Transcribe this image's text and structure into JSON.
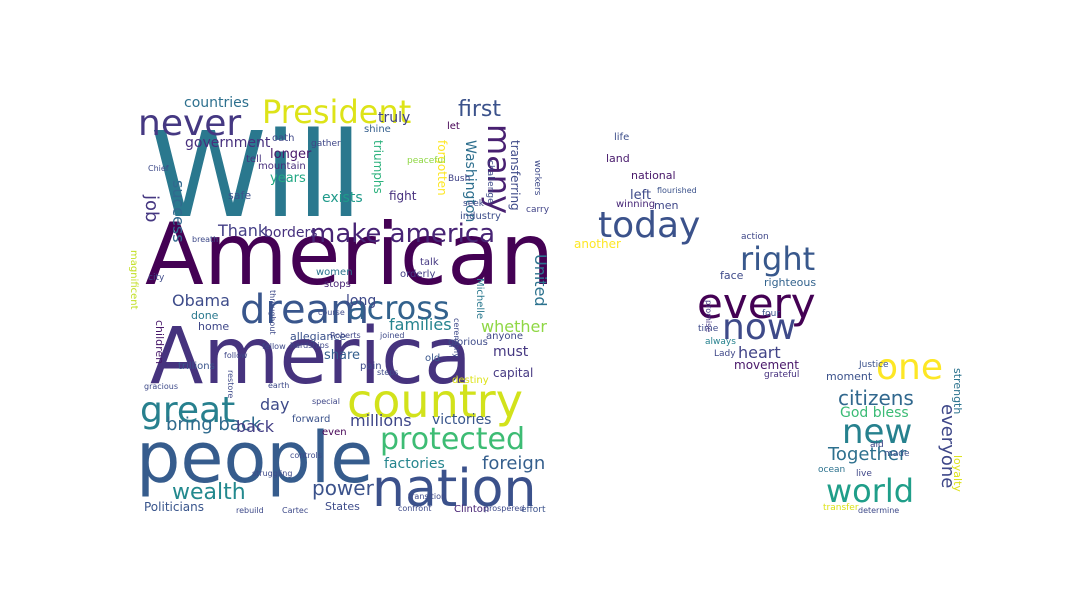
{
  "chart_data": {
    "type": "wordcloud",
    "title": "",
    "words": [
      {
        "text": "Will",
        "color": "#2a788e"
      },
      {
        "text": "American",
        "color": "#440154"
      },
      {
        "text": "America",
        "color": "#46337e"
      },
      {
        "text": "people",
        "color": "#365c8d"
      },
      {
        "text": "nation",
        "color": "#3b518b"
      },
      {
        "text": "country",
        "color": "#d2e21b"
      },
      {
        "text": "President",
        "color": "#dde318"
      },
      {
        "text": "dream",
        "color": "#39568c"
      },
      {
        "text": "great",
        "color": "#27808e"
      },
      {
        "text": "never",
        "color": "#453882"
      },
      {
        "text": "protected",
        "color": "#3dbc74"
      },
      {
        "text": "make america",
        "color": "#482475"
      },
      {
        "text": "across",
        "color": "#33628d"
      },
      {
        "text": "many",
        "color": "#482071"
      },
      {
        "text": "every",
        "color": "#440154"
      },
      {
        "text": "today",
        "color": "#3b528b"
      },
      {
        "text": "now",
        "color": "#3e4a89"
      },
      {
        "text": "right",
        "color": "#38588c"
      },
      {
        "text": "world",
        "color": "#1f9e89"
      },
      {
        "text": "new",
        "color": "#26818e"
      },
      {
        "text": "one",
        "color": "#fde725"
      },
      {
        "text": "citizens",
        "color": "#31688e"
      },
      {
        "text": "Together",
        "color": "#2d708e"
      },
      {
        "text": "everyone",
        "color": "#3f4889"
      },
      {
        "text": "God bless",
        "color": "#3bbb75"
      },
      {
        "text": "wealth",
        "color": "#23898e"
      },
      {
        "text": "power",
        "color": "#3b528b"
      },
      {
        "text": "bring back",
        "color": "#2f6b8e"
      },
      {
        "text": "foreign",
        "color": "#355f8d"
      },
      {
        "text": "factories",
        "color": "#25858e"
      },
      {
        "text": "millions",
        "color": "#3f4788"
      },
      {
        "text": "victories",
        "color": "#39568c"
      },
      {
        "text": "job",
        "color": "#453781"
      },
      {
        "text": "success",
        "color": "#31688e"
      },
      {
        "text": "first",
        "color": "#3b528b"
      },
      {
        "text": "truly",
        "color": "#414487"
      },
      {
        "text": "families",
        "color": "#25838e"
      },
      {
        "text": "whether",
        "color": "#8fd744"
      },
      {
        "text": "borders",
        "color": "#46307e"
      },
      {
        "text": "Thank",
        "color": "#433e85"
      },
      {
        "text": "Obama",
        "color": "#3e4c8a"
      },
      {
        "text": "United",
        "color": "#2c728e"
      },
      {
        "text": "capital",
        "color": "#453882"
      },
      {
        "text": "must",
        "color": "#453781"
      },
      {
        "text": "heart",
        "color": "#414487"
      },
      {
        "text": "long",
        "color": "#3e4989"
      },
      {
        "text": "share",
        "color": "#355f8d"
      },
      {
        "text": "day",
        "color": "#3e4a89"
      },
      {
        "text": "back",
        "color": "#433e85"
      },
      {
        "text": "countries",
        "color": "#2d708e"
      },
      {
        "text": "government",
        "color": "#472f7d"
      },
      {
        "text": "longer",
        "color": "#48186a"
      },
      {
        "text": "years",
        "color": "#22a884"
      },
      {
        "text": "exists",
        "color": "#1f9a8a"
      },
      {
        "text": "fight",
        "color": "#46307e"
      },
      {
        "text": "triumphs",
        "color": "#2db27d"
      },
      {
        "text": "forgotten",
        "color": "#fde725"
      },
      {
        "text": "Washington",
        "color": "#2e6f8e"
      },
      {
        "text": "transferring",
        "color": "#3e4a89"
      },
      {
        "text": "land",
        "color": "#481a6c"
      },
      {
        "text": "national",
        "color": "#48186a"
      },
      {
        "text": "left",
        "color": "#3e4a89"
      },
      {
        "text": "men",
        "color": "#3f4788"
      },
      {
        "text": "winning",
        "color": "#482878"
      },
      {
        "text": "another",
        "color": "#fde725"
      },
      {
        "text": "face",
        "color": "#3e4a89"
      },
      {
        "text": "righteous",
        "color": "#33638d"
      },
      {
        "text": "moment",
        "color": "#3b528b"
      },
      {
        "text": "movement",
        "color": "#481769"
      },
      {
        "text": "strength",
        "color": "#2c738e"
      },
      {
        "text": "loyalty",
        "color": "#dde318"
      },
      {
        "text": "Politicians",
        "color": "#39558c"
      },
      {
        "text": "States",
        "color": "#3e4c8a"
      },
      {
        "text": "Clinton",
        "color": "#482475"
      },
      {
        "text": "children",
        "color": "#48186a"
      },
      {
        "text": "trillions",
        "color": "#3a548c"
      },
      {
        "text": "done",
        "color": "#2a788e"
      },
      {
        "text": "home",
        "color": "#3f4788"
      },
      {
        "text": "allegiance",
        "color": "#3b528b"
      },
      {
        "text": "pain",
        "color": "#3e4a89"
      },
      {
        "text": "women",
        "color": "#2c738e"
      },
      {
        "text": "stops",
        "color": "#482475"
      },
      {
        "text": "safe",
        "color": "#3b528b"
      },
      {
        "text": "tell",
        "color": "#46327e"
      },
      {
        "text": "mountain",
        "color": "#472d7b"
      },
      {
        "text": "oath",
        "color": "#3f4788"
      },
      {
        "text": "shine",
        "color": "#355f8d"
      },
      {
        "text": "talk",
        "color": "#453882"
      },
      {
        "text": "orderly",
        "color": "#433d84"
      },
      {
        "text": "old",
        "color": "#39568c"
      },
      {
        "text": "glorious",
        "color": "#3e4a89"
      },
      {
        "text": "anyone",
        "color": "#3f4788"
      },
      {
        "text": "destiny",
        "color": "#dde318"
      },
      {
        "text": "forward",
        "color": "#3b528b"
      },
      {
        "text": "even",
        "color": "#440154"
      },
      {
        "text": "Michelle",
        "color": "#2a788e"
      },
      {
        "text": "carry",
        "color": "#404387"
      },
      {
        "text": "industry",
        "color": "#3d4e8a"
      },
      {
        "text": "seek",
        "color": "#3e4a89"
      },
      {
        "text": "Bush",
        "color": "#404387"
      },
      {
        "text": "let",
        "color": "#440154"
      },
      {
        "text": "life",
        "color": "#3d4e8a"
      },
      {
        "text": "action",
        "color": "#3f4788"
      },
      {
        "text": "four",
        "color": "#3b528b"
      },
      {
        "text": "always",
        "color": "#26818e"
      },
      {
        "text": "Lady",
        "color": "#3f4788"
      },
      {
        "text": "time",
        "color": "#3e4a89"
      },
      {
        "text": "grateful",
        "color": "#46307e"
      },
      {
        "text": "made",
        "color": "#3b528b"
      },
      {
        "text": "live",
        "color": "#3f4788"
      },
      {
        "text": "ocean",
        "color": "#2c728e"
      },
      {
        "text": "aid",
        "color": "#3f4788"
      },
      {
        "text": "promise",
        "color": "#453882"
      },
      {
        "text": "Justice",
        "color": "#3b528b"
      },
      {
        "text": "transfer",
        "color": "#dde318"
      },
      {
        "text": "determine",
        "color": "#3e4a89"
      },
      {
        "text": "flourished",
        "color": "#3b528b"
      },
      {
        "text": "peaceful",
        "color": "#8fd744"
      },
      {
        "text": "gather",
        "color": "#3f4788"
      },
      {
        "text": "effort",
        "color": "#3b528b"
      },
      {
        "text": "rebuild",
        "color": "#3e4a89"
      },
      {
        "text": "Cartec",
        "color": "#3e4a89"
      },
      {
        "text": "confront",
        "color": "#3e4a89"
      },
      {
        "text": "prospered",
        "color": "#3e4a89"
      },
      {
        "text": "special",
        "color": "#3f4788"
      },
      {
        "text": "earth",
        "color": "#3e4a89"
      },
      {
        "text": "city",
        "color": "#3e4a89"
      },
      {
        "text": "follow",
        "color": "#3f4788"
      },
      {
        "text": "fellow",
        "color": "#3e4a89"
      },
      {
        "text": "hardships",
        "color": "#3f4788"
      },
      {
        "text": "gracious",
        "color": "#3e4a89"
      },
      {
        "text": "course",
        "color": "#3e4a89"
      },
      {
        "text": "steps",
        "color": "#3e4a89"
      },
      {
        "text": "joined",
        "color": "#3e4a89"
      },
      {
        "text": "Roberts",
        "color": "#3f4788"
      },
      {
        "text": "throughout",
        "color": "#3e4a89"
      },
      {
        "text": "challenge",
        "color": "#3e4a89"
      },
      {
        "text": "workers",
        "color": "#3e4a89"
      },
      {
        "text": "breath",
        "color": "#3e4a89"
      },
      {
        "text": "Chief",
        "color": "#3e4a89"
      },
      {
        "text": "restore",
        "color": "#3e4a89"
      },
      {
        "text": "struggling",
        "color": "#3e4a89"
      },
      {
        "text": "magnificent",
        "color": "#c2df23"
      },
      {
        "text": "ceremony",
        "color": "#3e4a89"
      },
      {
        "text": "transition",
        "color": "#3e4a89"
      },
      {
        "text": "controls",
        "color": "#3e4a89"
      }
    ]
  }
}
